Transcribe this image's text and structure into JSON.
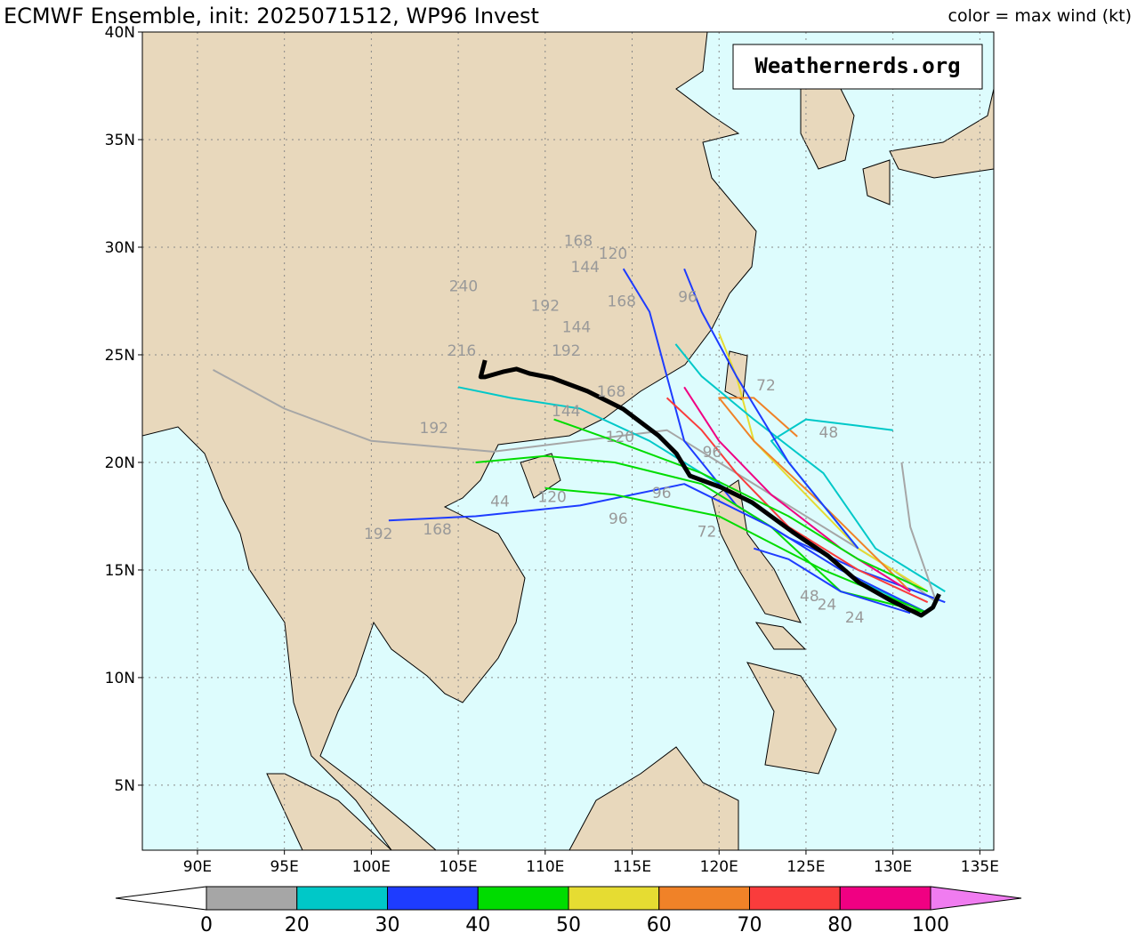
{
  "title": "ECMWF Ensemble, init: 2025071512, WP96 Invest",
  "subtitle_right": "color = max wind (kt)",
  "watermark": "Weathernerds.org",
  "map": {
    "xlim": [
      86.83,
      135.8
    ],
    "ylim": [
      1.98,
      40
    ],
    "xticks": [
      {
        "value": 90,
        "label": "90E"
      },
      {
        "value": 95,
        "label": "95E"
      },
      {
        "value": 100,
        "label": "100E"
      },
      {
        "value": 105,
        "label": "105E"
      },
      {
        "value": 110,
        "label": "110E"
      },
      {
        "value": 115,
        "label": "115E"
      },
      {
        "value": 120,
        "label": "120E"
      },
      {
        "value": 125,
        "label": "125E"
      },
      {
        "value": 130,
        "label": "130E"
      },
      {
        "value": 135,
        "label": "135E"
      }
    ],
    "yticks": [
      {
        "value": 5,
        "label": "5N"
      },
      {
        "value": 10,
        "label": "10N"
      },
      {
        "value": 15,
        "label": "15N"
      },
      {
        "value": 20,
        "label": "20N"
      },
      {
        "value": 25,
        "label": "25N"
      },
      {
        "value": 30,
        "label": "30N"
      },
      {
        "value": 35,
        "label": "35N"
      },
      {
        "value": 40,
        "label": "40N"
      }
    ],
    "grid": true,
    "tracks": [
      {
        "color": "#a6a6a6",
        "lon": [
          132.5,
          130,
          127,
          124,
          120,
          117,
          112,
          107,
          100,
          95,
          90.9
        ],
        "lat": [
          13.5,
          15,
          16.5,
          18,
          20,
          21.5,
          21,
          20.5,
          21,
          22.5,
          24.3
        ]
      },
      {
        "color": "#00c8c8",
        "lon": [
          132,
          128,
          124,
          120,
          116,
          112,
          108,
          105
        ],
        "lat": [
          13,
          14.5,
          17,
          19,
          21,
          22.5,
          23,
          23.5
        ]
      },
      {
        "color": "#1e3cff",
        "lon": [
          133,
          128,
          124,
          121,
          118,
          117,
          116,
          114.5
        ],
        "lat": [
          13.5,
          15,
          16.5,
          18,
          21,
          24,
          27,
          29
        ]
      },
      {
        "color": "#00dc00",
        "lon": [
          132,
          127,
          123,
          119,
          114,
          110,
          106
        ],
        "lat": [
          13,
          14,
          17,
          19,
          20,
          20.3,
          20
        ]
      },
      {
        "color": "#e6dc32",
        "lon": [
          132,
          128,
          125,
          122,
          121,
          120
        ],
        "lat": [
          14,
          16,
          18.5,
          21,
          24,
          26
        ]
      },
      {
        "color": "#f08228",
        "lon": [
          131,
          126,
          122,
          120,
          122,
          124.5
        ],
        "lat": [
          14,
          18,
          21,
          23,
          23,
          21.2
        ]
      },
      {
        "color": "#fa3c3c",
        "lon": [
          132,
          128,
          124,
          121,
          119,
          117
        ],
        "lat": [
          13.5,
          15,
          17,
          19.5,
          21.5,
          23
        ]
      },
      {
        "color": "#1e3cff",
        "lon": [
          132,
          127,
          123,
          118,
          112,
          106,
          101
        ],
        "lat": [
          13,
          15,
          17,
          19,
          18,
          17.5,
          17.3
        ]
      },
      {
        "color": "#00c8c8",
        "lon": [
          133,
          129,
          126,
          122,
          119,
          117.5
        ],
        "lat": [
          14,
          16,
          19.5,
          22,
          24,
          25.5
        ]
      },
      {
        "color": "#00dc00",
        "lon": [
          132,
          126,
          120,
          114,
          110
        ],
        "lat": [
          13,
          15,
          17.5,
          18.5,
          18.8
        ]
      },
      {
        "color": "#a6a6a6",
        "lon": [
          132.5,
          131,
          130.5
        ],
        "lat": [
          13.5,
          17,
          20
        ]
      },
      {
        "color": "#1e3cff",
        "lon": [
          131,
          127,
          124,
          122
        ],
        "lat": [
          13,
          14,
          15.5,
          16
        ]
      },
      {
        "color": "#00c8c8",
        "lon": [
          128,
          125,
          123,
          125,
          128,
          130
        ],
        "lat": [
          16,
          19,
          21,
          22,
          21.7,
          21.5
        ]
      },
      {
        "color": "#1e3cff",
        "lon": [
          128,
          124,
          121,
          119,
          118
        ],
        "lat": [
          16,
          20,
          24,
          27,
          29
        ]
      },
      {
        "color": "#f00082",
        "lon": [
          131,
          127,
          123,
          120,
          118
        ],
        "lat": [
          14,
          16,
          18.5,
          21,
          23.5
        ]
      },
      {
        "color": "#00dc00",
        "lon": [
          132,
          128,
          124,
          119,
          114,
          110.5
        ],
        "lat": [
          14,
          15.5,
          17.5,
          19.5,
          21,
          22
        ]
      }
    ],
    "mean_track": {
      "color": "#000000",
      "lon": [
        132.66,
        132.3,
        131.63,
        129.84,
        128.05,
        126.26,
        124.21,
        121.9,
        120.11,
        118.32,
        117.55,
        116.53,
        114.48,
        112.43,
        110.38,
        109.1,
        108.34,
        107.57,
        106.54,
        106.29,
        106.54
      ],
      "lat": [
        13.88,
        13.26,
        12.89,
        13.6,
        14.42,
        15.66,
        16.78,
        18.14,
        18.84,
        19.38,
        20.41,
        21.24,
        22.48,
        23.31,
        23.93,
        24.13,
        24.34,
        24.21,
        23.97,
        23.97,
        24.75
      ]
    },
    "hour_labels": [
      {
        "text": "240",
        "lon": 105.3,
        "lat": 28.2
      },
      {
        "text": "216",
        "lon": 105.2,
        "lat": 25.2
      },
      {
        "text": "192",
        "lon": 110,
        "lat": 27.3
      },
      {
        "text": "192",
        "lon": 111.2,
        "lat": 25.2
      },
      {
        "text": "192",
        "lon": 103.6,
        "lat": 21.6
      },
      {
        "text": "192",
        "lon": 100.4,
        "lat": 16.7
      },
      {
        "text": "168",
        "lon": 111.9,
        "lat": 30.3
      },
      {
        "text": "168",
        "lon": 114.4,
        "lat": 27.5
      },
      {
        "text": "168",
        "lon": 103.8,
        "lat": 16.9
      },
      {
        "text": "168",
        "lon": 113.8,
        "lat": 23.3
      },
      {
        "text": "144",
        "lon": 112.3,
        "lat": 29.1
      },
      {
        "text": "144",
        "lon": 111.8,
        "lat": 26.3
      },
      {
        "text": "144",
        "lon": 111.2,
        "lat": 22.4
      },
      {
        "text": "120",
        "lon": 113.9,
        "lat": 29.7
      },
      {
        "text": "120",
        "lon": 110.4,
        "lat": 18.4
      },
      {
        "text": "120",
        "lon": 114.3,
        "lat": 21.2
      },
      {
        "text": "96",
        "lon": 118.2,
        "lat": 27.7
      },
      {
        "text": "96",
        "lon": 114.2,
        "lat": 17.4
      },
      {
        "text": "96",
        "lon": 116.7,
        "lat": 18.6
      },
      {
        "text": "96",
        "lon": 119.6,
        "lat": 20.5
      },
      {
        "text": "72",
        "lon": 122.7,
        "lat": 23.6
      },
      {
        "text": "72",
        "lon": 119.3,
        "lat": 16.8
      },
      {
        "text": "48",
        "lon": 126.3,
        "lat": 21.4
      },
      {
        "text": "48",
        "lon": 125.2,
        "lat": 13.8
      },
      {
        "text": "44",
        "lon": 107.4,
        "lat": 18.2
      },
      {
        "text": "24",
        "lon": 126.2,
        "lat": 13.4
      },
      {
        "text": "24",
        "lon": 127.8,
        "lat": 12.8
      }
    ]
  },
  "colorbar": {
    "ticks": [
      0,
      20,
      30,
      40,
      50,
      60,
      70,
      80,
      100
    ],
    "colors": [
      "#a6a6a6",
      "#00c8c8",
      "#1e3cff",
      "#00dc00",
      "#e6dc32",
      "#f08228",
      "#fa3c3c",
      "#f00082"
    ],
    "under_color": "#ffffff",
    "over_color": "#f07cf0"
  }
}
